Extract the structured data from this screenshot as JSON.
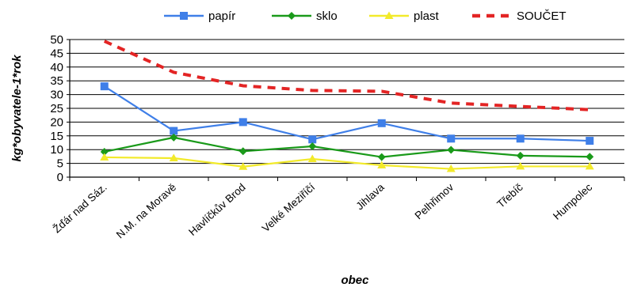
{
  "chart_data": {
    "type": "line",
    "title": "",
    "xlabel": "obec",
    "ylabel": "kg*obyvatele-1*rok",
    "ylim": [
      0,
      50
    ],
    "yticks": [
      0,
      5,
      10,
      15,
      20,
      25,
      30,
      35,
      40,
      45,
      50
    ],
    "grid": true,
    "legend_position": "top",
    "categories": [
      "Žďár nad Sáz.",
      "N.M. na Moravě",
      "Havlíčkův Brod",
      "Velké Meziříčí",
      "Jihlava",
      "Pelhřimov",
      "Třebíč",
      "Humpolec"
    ],
    "series": [
      {
        "name": "papír",
        "color": "#3f7fe8",
        "marker": "square",
        "line_style": "solid",
        "values": [
          33,
          16.8,
          20,
          13.7,
          19.6,
          14,
          14,
          13.2
        ]
      },
      {
        "name": "sklo",
        "color": "#1a9a1a",
        "marker": "diamond",
        "line_style": "solid",
        "values": [
          9.2,
          14.4,
          9.4,
          11.2,
          7.3,
          9.9,
          7.8,
          7.4
        ]
      },
      {
        "name": "plast",
        "color": "#f2ea2a",
        "marker": "triangle",
        "line_style": "solid",
        "values": [
          7.2,
          6.9,
          3.8,
          6.6,
          4.3,
          3,
          3.9,
          3.9
        ]
      },
      {
        "name": "SOUČET",
        "color": "#e32424",
        "marker": "none",
        "line_style": "dashed",
        "values": [
          49.4,
          38.1,
          33.2,
          31.5,
          31.2,
          26.9,
          25.7,
          24.5
        ]
      }
    ]
  }
}
